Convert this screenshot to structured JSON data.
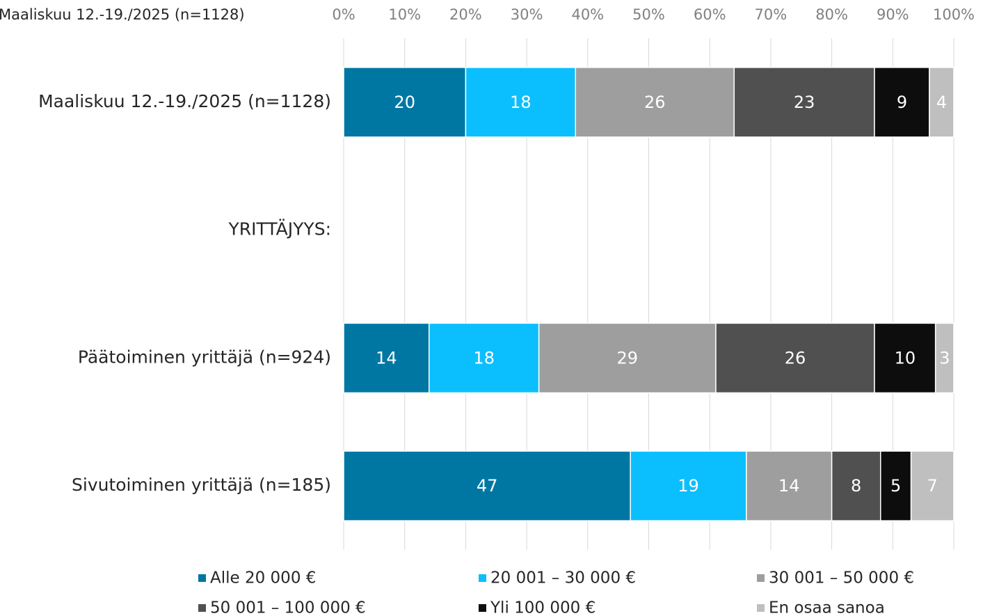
{
  "chart_data": {
    "type": "stacked_bar_horizontal",
    "title": "Maaliskuu 12.-19./2025 (n=1128)",
    "categories": [
      "Maaliskuu 12.-19./2025 (n=1128)",
      "YRITTÄJYYS:",
      "Päätoiminen yrittäjä (n=924)",
      "Sivutoiminen yrittäjä (n=185)"
    ],
    "series": [
      {
        "name": "Alle 20 000 €",
        "color": "#0077a3",
        "values": [
          20,
          null,
          14,
          47
        ]
      },
      {
        "name": "20 001 – 30 000 €",
        "color": "#0bbfff",
        "values": [
          18,
          null,
          18,
          19
        ]
      },
      {
        "name": "30 001 – 50 000 €",
        "color": "#9e9e9e",
        "values": [
          26,
          null,
          29,
          14
        ]
      },
      {
        "name": "50 001 – 100 000 €",
        "color": "#505050",
        "values": [
          23,
          null,
          26,
          8
        ]
      },
      {
        "name": "Yli 100 000 €",
        "color": "#0d0d0d",
        "values": [
          9,
          null,
          10,
          5
        ]
      },
      {
        "name": "En osaa sanoa",
        "color": "#bfbfbf",
        "values": [
          4,
          null,
          3,
          7
        ]
      }
    ],
    "xlim": [
      0,
      100
    ],
    "xticks": [
      {
        "value": 0,
        "label": "0%"
      },
      {
        "value": 10,
        "label": "10%"
      },
      {
        "value": 20,
        "label": "20%"
      },
      {
        "value": 30,
        "label": "30%"
      },
      {
        "value": 40,
        "label": "40%"
      },
      {
        "value": 50,
        "label": "50%"
      },
      {
        "value": 60,
        "label": "60%"
      },
      {
        "value": 70,
        "label": "70%"
      },
      {
        "value": 80,
        "label": "80%"
      },
      {
        "value": 90,
        "label": "90%"
      },
      {
        "value": 100,
        "label": "100%"
      }
    ],
    "grid": true,
    "legend": "bottom"
  }
}
